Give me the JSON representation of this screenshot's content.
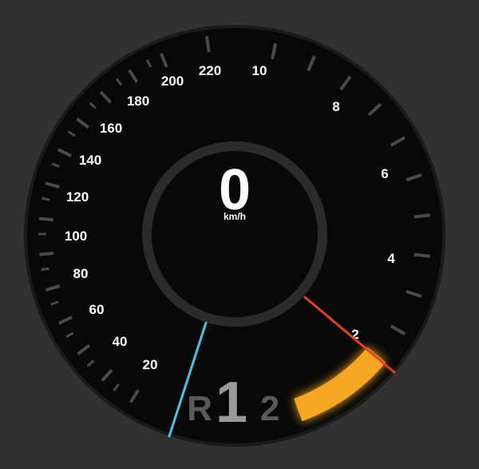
{
  "speedometer": {
    "value": "0",
    "unit": "km/h",
    "needle_color": "#3cc8e8",
    "scale_labels": [
      "20",
      "40",
      "60",
      "80",
      "100",
      "120",
      "140",
      "160",
      "180",
      "200",
      "220"
    ]
  },
  "tachometer": {
    "scale_labels": [
      "2",
      "4",
      "6",
      "8",
      "10"
    ],
    "needle_color": "#e8401c",
    "redline_color": "#f5a623"
  },
  "gear_indicator": {
    "reverse": "R",
    "current": "1",
    "next": "2"
  },
  "colors": {
    "background": "#323132",
    "dial_face": "#080808",
    "dial_ring": "#2b2b2b",
    "ticks": "#4a4a4a",
    "text": "#ffffff"
  }
}
